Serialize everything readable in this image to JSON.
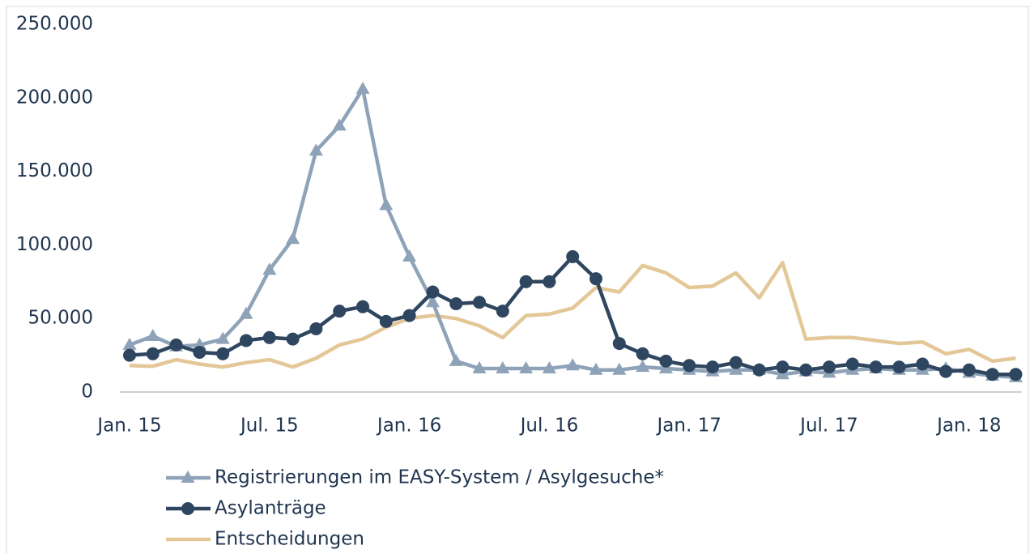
{
  "chart_data": {
    "type": "line",
    "categories": [
      "Jan. 15",
      null,
      null,
      null,
      null,
      null,
      "Jul. 15",
      null,
      null,
      null,
      null,
      null,
      "Jan. 16",
      null,
      null,
      null,
      null,
      null,
      "Jul. 16",
      null,
      null,
      null,
      null,
      null,
      "Jan. 17",
      null,
      null,
      null,
      null,
      null,
      "Jul. 17",
      null,
      null,
      null,
      null,
      null,
      "Jan. 18",
      null,
      null
    ],
    "series": [
      {
        "name": "Registrierungen im EASY-System / Asylgesuche*",
        "color": "#8fa3b8",
        "marker": "triangle",
        "values": [
          32000,
          38000,
          31000,
          32000,
          36000,
          53000,
          83000,
          104000,
          164000,
          181000,
          206000,
          127000,
          92000,
          61000,
          21000,
          16000,
          16000,
          16000,
          16000,
          18000,
          15000,
          15000,
          17000,
          16000,
          15000,
          14000,
          15000,
          15000,
          12000,
          14000,
          13000,
          15000,
          16000,
          15000,
          15000,
          16000,
          13000,
          11000,
          10000
        ]
      },
      {
        "name": "Asylanträge",
        "color": "#2e4660",
        "marker": "circle",
        "values": [
          25000,
          26000,
          32000,
          27000,
          26000,
          35000,
          37000,
          36000,
          43000,
          55000,
          58000,
          48000,
          52000,
          68000,
          60000,
          61000,
          55000,
          75000,
          75000,
          92000,
          77000,
          33000,
          26000,
          21000,
          18000,
          17000,
          20000,
          15000,
          17000,
          15000,
          17000,
          19000,
          17000,
          17000,
          19000,
          14000,
          15000,
          12000,
          12000
        ]
      },
      {
        "name": "Entscheidungen",
        "color": "#e3c797",
        "marker": "none",
        "values": [
          18000,
          17500,
          22000,
          19000,
          17000,
          20000,
          22000,
          17000,
          23000,
          32000,
          36000,
          44000,
          50000,
          52000,
          50000,
          45000,
          37000,
          52000,
          53000,
          57000,
          71000,
          68000,
          86000,
          81000,
          71000,
          72000,
          81000,
          64000,
          88000,
          36000,
          37000,
          37000,
          35000,
          33000,
          34000,
          26000,
          29000,
          21000,
          23000
        ]
      }
    ],
    "ylim": [
      0,
      250000
    ],
    "yticks": [
      0,
      {
        "value": 50000,
        "label": "50.000"
      },
      {
        "value": 100000,
        "label": "100.000"
      },
      {
        "value": 150000,
        "label": "150.000"
      },
      {
        "value": 200000,
        "label": "200.000"
      },
      {
        "value": 250000,
        "label": "250.000"
      }
    ],
    "grid": false
  }
}
